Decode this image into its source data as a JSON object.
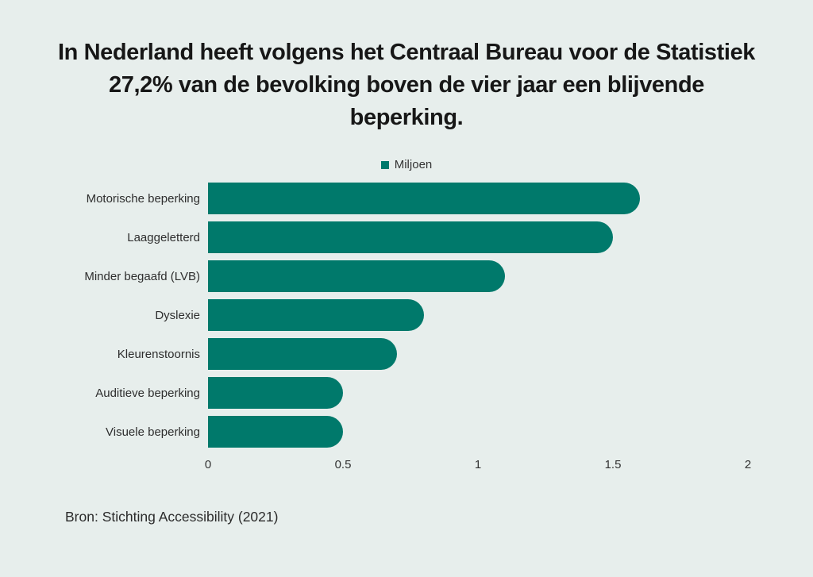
{
  "title": "In Nederland heeft volgens het Centraal Bureau voor de Statistiek 27,2% van de bevolking boven de vier jaar een blijvende beperking.",
  "legend": {
    "label": "Miljoen",
    "marker_color": "#00796b"
  },
  "source": "Bron: Stichting Accessibility (2021)",
  "colors": {
    "bar": "#00796b",
    "background": "#e7eeec",
    "title_text": "#171717",
    "body_text": "#2f2f2f"
  },
  "chart_data": {
    "type": "bar",
    "orientation": "horizontal",
    "title": "In Nederland heeft volgens het Centraal Bureau voor de Statistiek 27,2% van de bevolking boven de vier jaar een blijvende beperking.",
    "categories": [
      "Motorische beperking",
      "Laaggeletterd",
      "Minder begaafd (LVB)",
      "Dyslexie",
      "Kleurenstoornis",
      "Auditieve beperking",
      "Visuele beperking"
    ],
    "values": [
      1.6,
      1.5,
      1.1,
      0.8,
      0.7,
      0.5,
      0.5
    ],
    "series_name": "Miljoen",
    "xlabel": "",
    "ylabel": "",
    "xlim": [
      0,
      2
    ],
    "xticks": [
      "0",
      "0.5",
      "1",
      "1.5",
      "2"
    ],
    "grid": false,
    "legend_position": "top-center",
    "bar_style": "rounded-right-end"
  }
}
